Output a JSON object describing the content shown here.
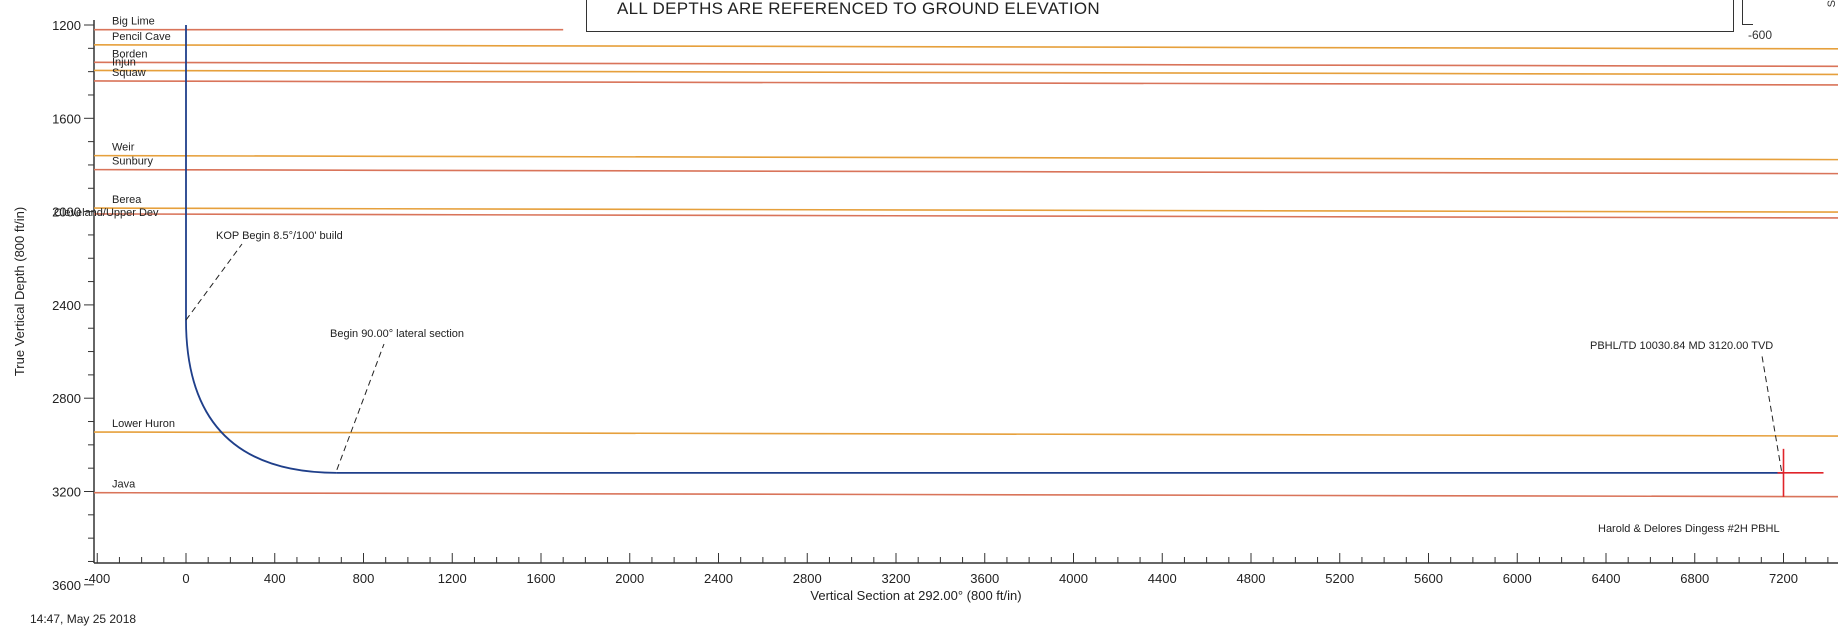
{
  "note": {
    "text": "ALL DEPTHS ARE REFERENCED TO GROUND ELEVATION"
  },
  "inset": {
    "label": "-600",
    "edge_text": "S"
  },
  "timestamp": "14:47, May 25 2018",
  "colors": {
    "formation_line": "#d9745a",
    "formation_line_alt": "#e6a03c",
    "well_path": "#1f3f8a",
    "target_marker": "#e0242a",
    "axis": "#333333"
  },
  "chart_data": {
    "type": "line",
    "xlabel": "Vertical Section at 292.00° (800 ft/in)",
    "ylabel": "True Vertical Depth (800 ft/in)",
    "xlim": [
      -400,
      7400
    ],
    "ylim": [
      1200,
      3600
    ],
    "y_inverted": true,
    "x_ticks": [
      -400,
      0,
      400,
      800,
      1200,
      1600,
      2000,
      2400,
      2800,
      3200,
      3600,
      4000,
      4400,
      4800,
      5200,
      5600,
      6000,
      6400,
      6800,
      7200
    ],
    "x_tick_labels": [
      "-400",
      "0",
      "400",
      "800",
      "1200",
      "1600",
      "2000",
      "2400",
      "2800",
      "3200",
      "3600",
      "4000",
      "4400",
      "4800",
      "5200",
      "5600",
      "6000",
      "6400",
      "6800",
      "7200"
    ],
    "y_ticks": [
      1200,
      1600,
      2000,
      2400,
      2800,
      3200,
      3600
    ],
    "y_tick_labels": [
      "1200",
      "1600",
      "2000",
      "2400",
      "2800",
      "3200",
      "3600"
    ],
    "formations": [
      {
        "name": "Big Lime",
        "depth": 1220,
        "xmax": 1700
      },
      {
        "name": "Pencil Cave",
        "depth": 1285
      },
      {
        "name": "Borden",
        "depth": 1360
      },
      {
        "name": "Injun",
        "depth": 1395
      },
      {
        "name": "Squaw",
        "depth": 1440
      },
      {
        "name": "Weir",
        "depth": 1760
      },
      {
        "name": "Sunbury",
        "depth": 1820
      },
      {
        "name": "Berea",
        "depth": 1985
      },
      {
        "name": "Cleveland/Upper Dev",
        "depth": 2010
      },
      {
        "name": "Lower Huron",
        "depth": 2945
      },
      {
        "name": "Java",
        "depth": 3205
      }
    ],
    "well_path": {
      "kop": {
        "x": 0,
        "y": 2465
      },
      "lateral_start": {
        "x": 680,
        "y": 3120
      },
      "td": {
        "x": 7200,
        "y": 3120
      }
    },
    "annotations": [
      {
        "text": "KOP Begin 8.5°/100' build"
      },
      {
        "text": "Begin 90.00° lateral section"
      },
      {
        "text": "PBHL/TD 10030.84 MD 3120.00 TVD"
      },
      {
        "text": "Harold & Delores Dingess #2H PBHL"
      }
    ]
  }
}
